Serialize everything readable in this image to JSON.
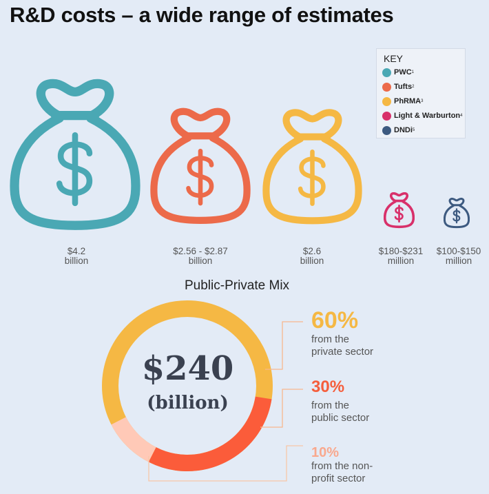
{
  "title": "R&D costs – a wide range of estimates",
  "key": {
    "title": "KEY",
    "items": [
      {
        "label": "PWC",
        "sup": "1",
        "color": "#4aa8b4"
      },
      {
        "label": "Tufts",
        "sup": "2",
        "color": "#ec6a4a"
      },
      {
        "label": "PhRMA",
        "sup": "3",
        "color": "#f5b844"
      },
      {
        "label": "Light & Warburton",
        "sup": "4",
        "color": "#d8306a"
      },
      {
        "label": "DNDi",
        "sup": "5",
        "color": "#3d5a80"
      }
    ]
  },
  "estimates": [
    {
      "value": "$4.2",
      "unit": "billion",
      "color": "#4aa8b4"
    },
    {
      "value": "$2.56 - $2.87",
      "unit": "billion",
      "color": "#ec6a4a"
    },
    {
      "value": "$2.6",
      "unit": "billion",
      "color": "#f5b844"
    },
    {
      "value": "$180-$231",
      "unit": "million",
      "color": "#d8306a"
    },
    {
      "value": "$100-$150",
      "unit": "million",
      "color": "#3d5a80"
    }
  ],
  "mix": {
    "title": "Public-Private Mix",
    "total_value": "$240",
    "total_unit": "(billion)",
    "segments": [
      {
        "percent": "60%",
        "fraction": 0.6,
        "line1": "from the",
        "line2": "private sector",
        "color": "#f5b844",
        "text_color": "#f5b844"
      },
      {
        "percent": "30%",
        "fraction": 0.3,
        "line1": "from the",
        "line2": "public sector",
        "color": "#fb5c3a",
        "text_color": "#f55e3c"
      },
      {
        "percent": "10%",
        "fraction": 0.1,
        "line1": "from the non-",
        "line2": "profit sector",
        "color": "#ffc9b7",
        "text_color": "#f9a88d"
      }
    ]
  }
}
